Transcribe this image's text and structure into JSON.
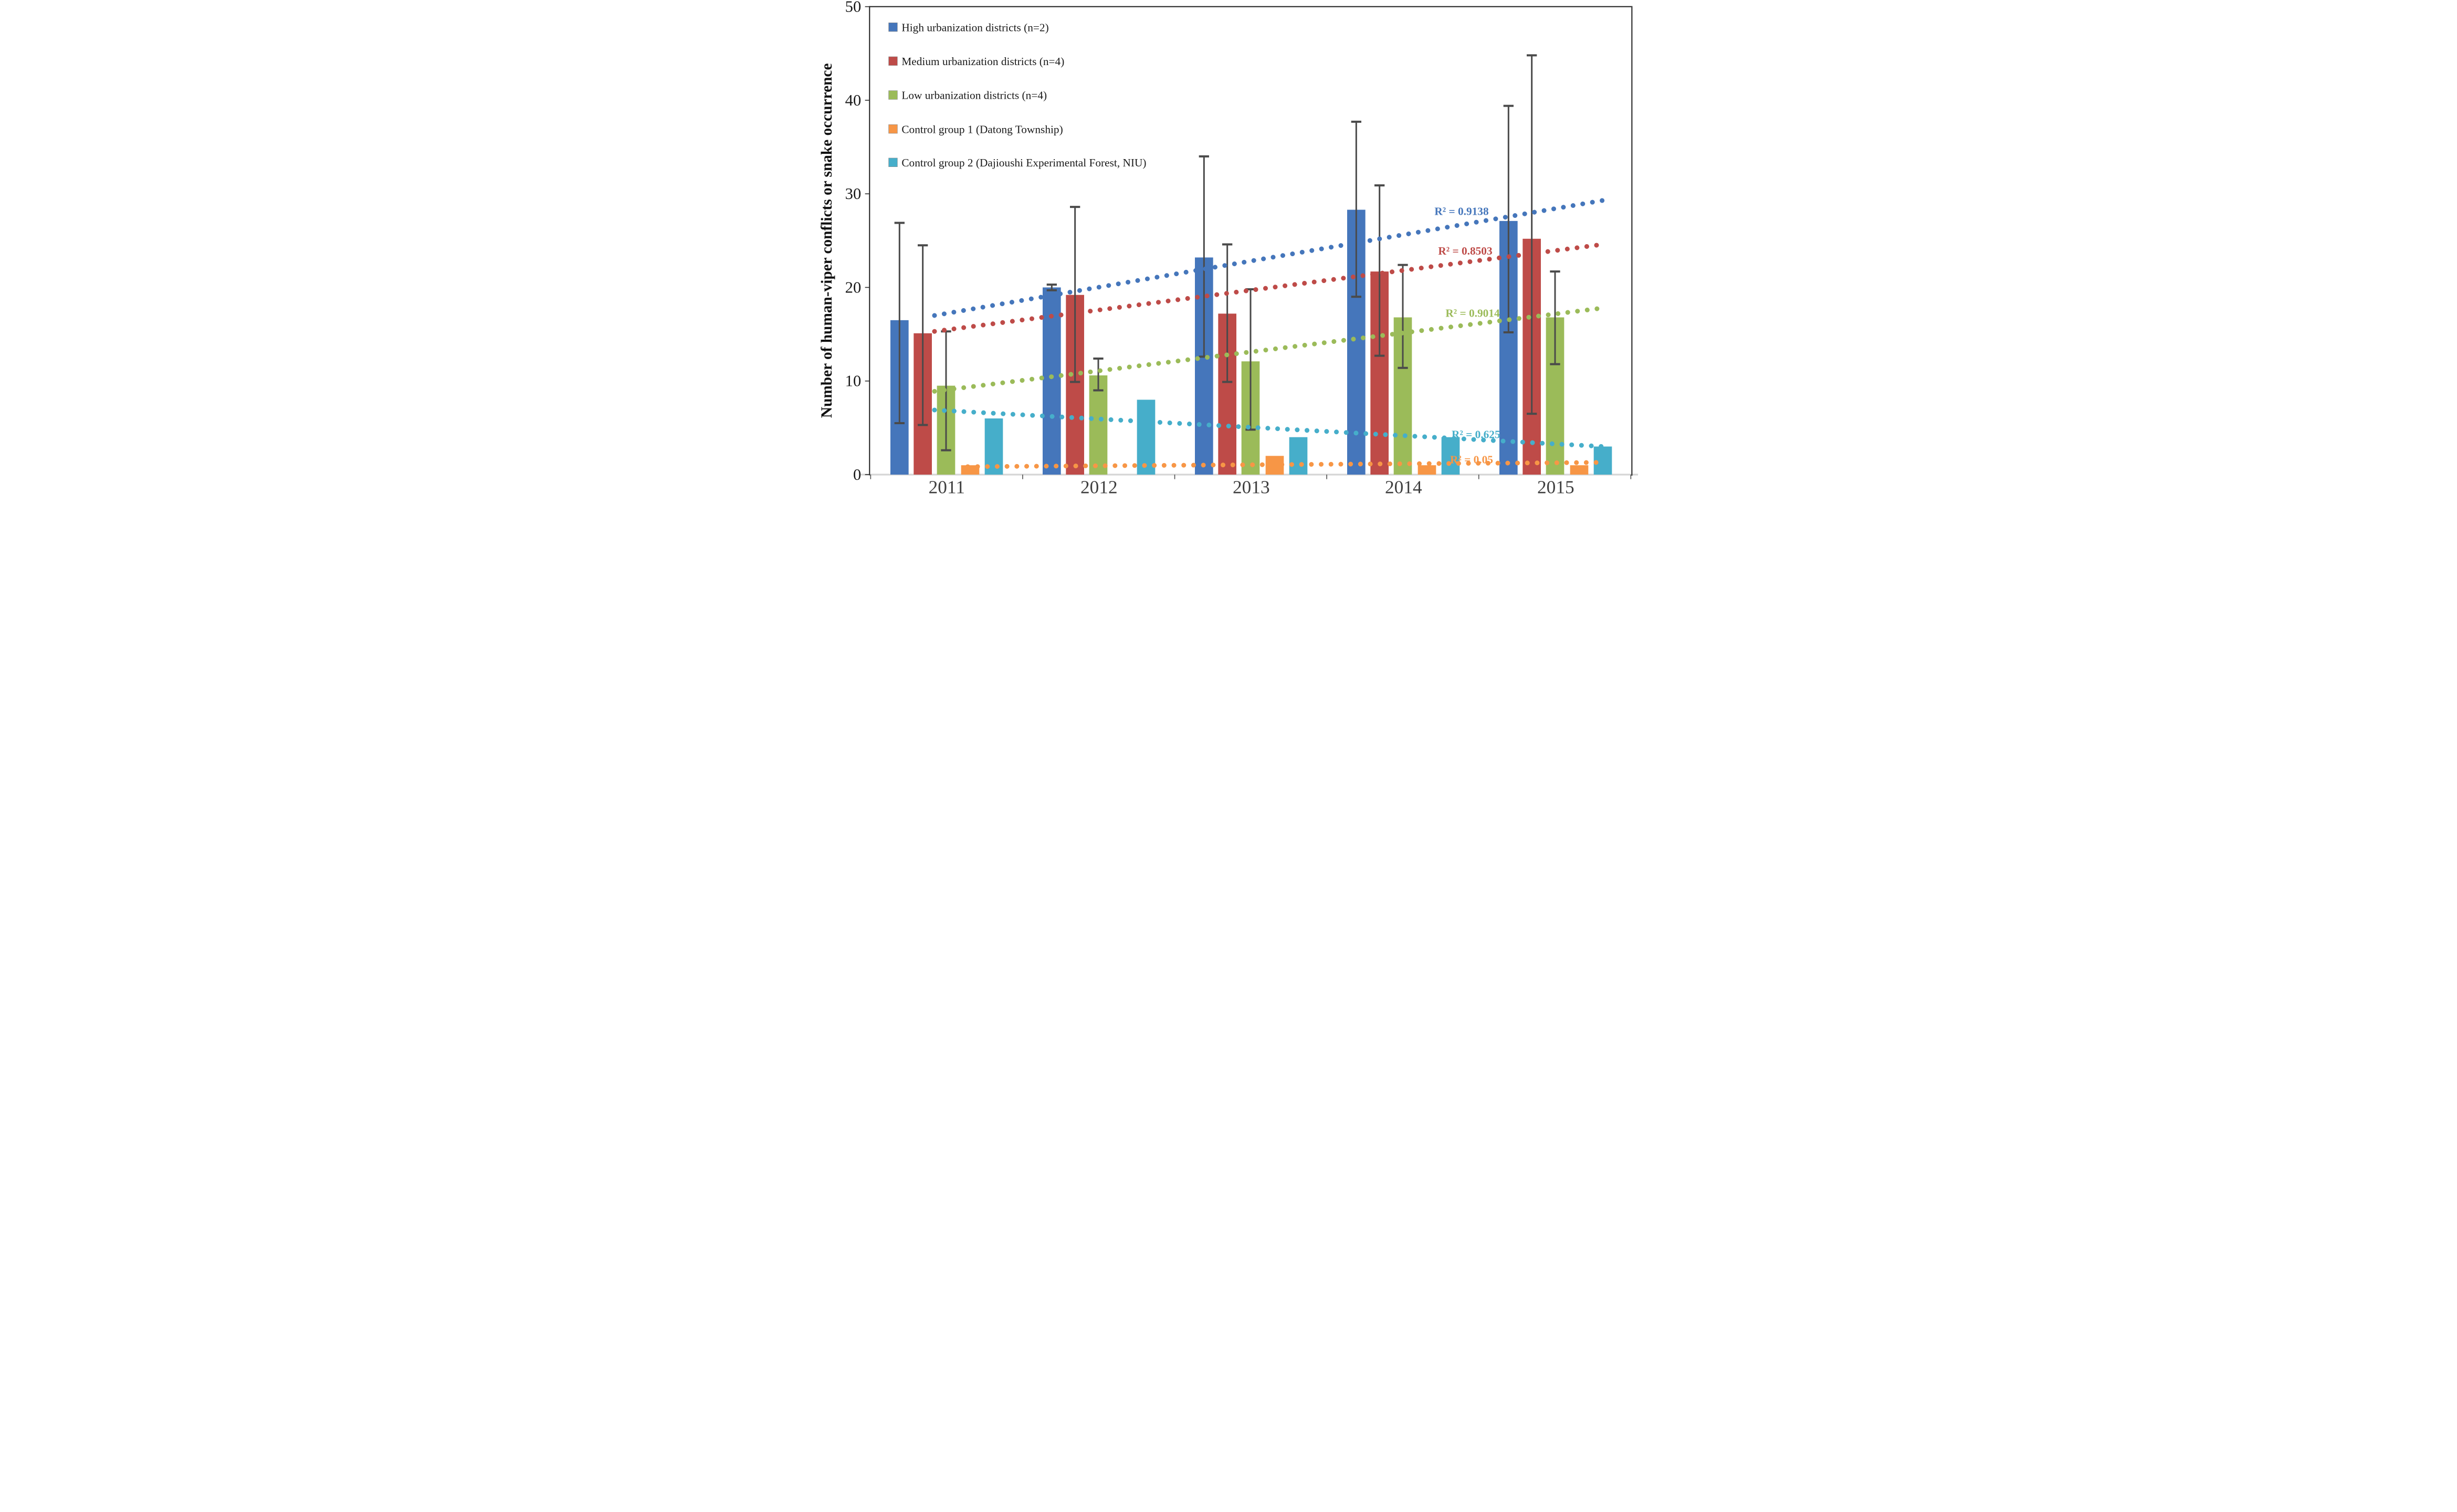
{
  "y_axis": {
    "title": "Number of human-viper conflicts or snake occurrence",
    "min": 0,
    "max": 50,
    "ticks": [
      0,
      10,
      20,
      30,
      40,
      50
    ]
  },
  "x_axis": {
    "categories": [
      "2011",
      "2012",
      "2013",
      "2014",
      "2015"
    ]
  },
  "colors": {
    "blue": "#4576BB",
    "red": "#BE4B48",
    "green": "#9BBB59",
    "orange": "#F79646",
    "cyan": "#46AECA",
    "error_bar": "#4a4a4a",
    "axis_frame": "#1a1a1a",
    "baseline_gray": "#d5d5d5",
    "year_label": "#3f3f3f"
  },
  "chart_data": {
    "type": "bar",
    "title": "",
    "xlabel": "",
    "ylabel": "Number of human-viper conflicts or snake occurrence",
    "ylim": [
      0,
      50
    ],
    "grid": false,
    "legend_position": "top-left-inside",
    "categories": [
      "2011",
      "2012",
      "2013",
      "2014",
      "2015"
    ],
    "series": [
      {
        "name": "High urbanization districts (n=2)",
        "color": "#4576BB",
        "values": [
          16.5,
          20.0,
          23.2,
          28.3,
          27.1
        ],
        "err_low": [
          5.5,
          19.7,
          12.6,
          19.0,
          15.2
        ],
        "err_high": [
          26.9,
          20.3,
          34.0,
          37.7,
          39.4
        ],
        "trend": {
          "start": 17.0,
          "end": 29.3,
          "r2_text": "R² = 0.9138",
          "label_x": 3672,
          "label_y": 1207
        }
      },
      {
        "name": "Medium urbanization districts (n=4)",
        "color": "#BE4B48",
        "values": [
          15.1,
          19.2,
          17.2,
          21.7,
          25.2
        ],
        "err_low": [
          5.3,
          9.9,
          9.9,
          12.7,
          6.5
        ],
        "err_high": [
          24.5,
          28.6,
          24.6,
          30.9,
          44.8
        ],
        "trend": {
          "start": 15.3,
          "end": 24.6,
          "r2_text": "R² = 0.8503",
          "label_x": 3693,
          "label_y": 1434
        }
      },
      {
        "name": "Low urbanization districts (n=4)",
        "color": "#9BBB59",
        "values": [
          9.5,
          10.6,
          12.1,
          16.8,
          16.8
        ],
        "err_low": [
          2.6,
          9.0,
          4.8,
          11.4,
          11.8
        ],
        "err_high": [
          15.3,
          12.4,
          19.8,
          22.4,
          21.7
        ],
        "trend": {
          "start": 8.9,
          "end": 17.8,
          "r2_text": "R² = 0.9014",
          "label_x": 3735,
          "label_y": 1789
        }
      },
      {
        "name": "Control group 1 (Datong Township)",
        "color": "#F79646",
        "values": [
          1,
          0,
          2,
          1,
          1
        ],
        "err_low": null,
        "err_high": null,
        "trend": {
          "start": 0.85,
          "end": 1.3,
          "r2_text": "R² = 0.05",
          "label_x": 3729,
          "label_y": 2626
        }
      },
      {
        "name": "Control group 2 (Dajioushi Experimental Forest, NIU)",
        "color": "#46AECA",
        "values": [
          6,
          8,
          4,
          4,
          3
        ],
        "err_low": null,
        "err_high": null,
        "trend": {
          "start": 6.9,
          "end": 3.0,
          "r2_text": "R² = 0.625",
          "label_x": 3754,
          "label_y": 2483
        }
      }
    ]
  },
  "legend": {
    "items": [
      "High urbanization districts (n=2)",
      "Medium urbanization districts (n=4)",
      "Low urbanization districts (n=4)",
      "Control group 1 (Datong Township)",
      "Control group 2 (Dajioushi Experimental Forest, NIU)"
    ]
  }
}
